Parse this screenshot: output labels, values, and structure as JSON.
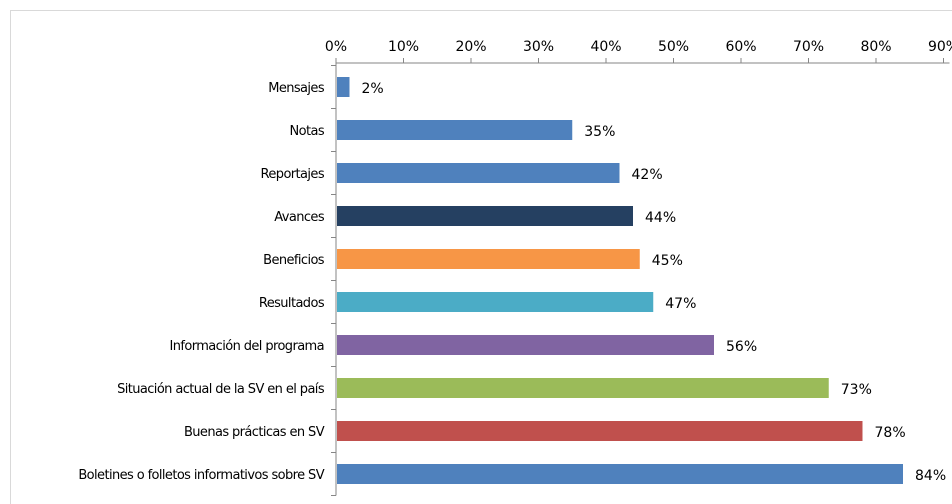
{
  "chart_data": {
    "type": "bar",
    "orientation": "horizontal",
    "categories": [
      "Mensajes",
      "Notas",
      "Reportajes",
      "Avances",
      "Beneficios",
      "Resultados",
      "Información del programa",
      "Situación actual de la SV en el país",
      "Buenas prácticas en SV",
      "Boletines o folletos informativos sobre SV"
    ],
    "values": [
      2,
      35,
      42,
      44,
      45,
      47,
      56,
      73,
      78,
      84
    ],
    "data_labels": [
      "2%",
      "35%",
      "42%",
      "44%",
      "45%",
      "47%",
      "56%",
      "73%",
      "78%",
      "84%"
    ],
    "colors": [
      "#4f81bd",
      "#4f81bd",
      "#4f81bd",
      "#254061",
      "#f79646",
      "#4bacc6",
      "#8064a2",
      "#9bbb59",
      "#c0504d",
      "#4f81bd"
    ],
    "xlim": [
      0,
      90
    ],
    "xticks": [
      0,
      10,
      20,
      30,
      40,
      50,
      60,
      70,
      80,
      90
    ],
    "xtick_labels": [
      "0%",
      "10%",
      "20%",
      "30%",
      "40%",
      "50%",
      "60%",
      "70%",
      "80%",
      "90%"
    ],
    "x_axis_position": "top",
    "grid": false,
    "legend": "none"
  }
}
